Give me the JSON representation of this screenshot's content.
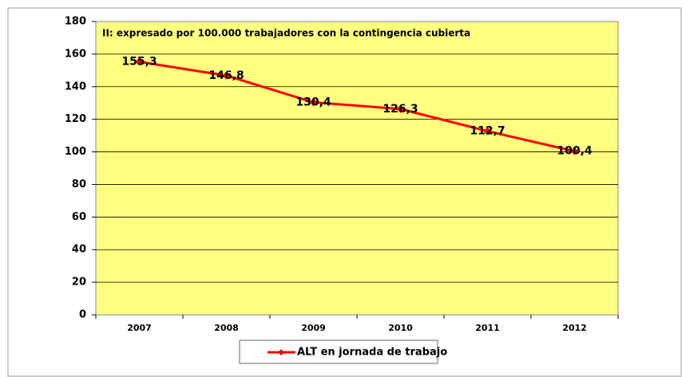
{
  "chart_data": {
    "type": "line",
    "annotation": "II: expresado por 100.000 trabajadores con la contingencia cubierta",
    "categories": [
      "2007",
      "2008",
      "2009",
      "2010",
      "2011",
      "2012"
    ],
    "series": [
      {
        "name": "ALT en jornada de trabajo",
        "color": "#ff0000",
        "values": [
          155.3,
          146.8,
          130.4,
          126.3,
          112.7,
          100.4
        ],
        "value_labels": [
          "155,3",
          "146,8",
          "130,4",
          "126,3",
          "112,7",
          "100,4"
        ]
      }
    ],
    "ylim": [
      0,
      180
    ],
    "yticks": [
      0,
      20,
      40,
      60,
      80,
      100,
      120,
      140,
      160,
      180
    ],
    "grid": true,
    "legend": "bottom",
    "plot_background": "#ffff80"
  }
}
